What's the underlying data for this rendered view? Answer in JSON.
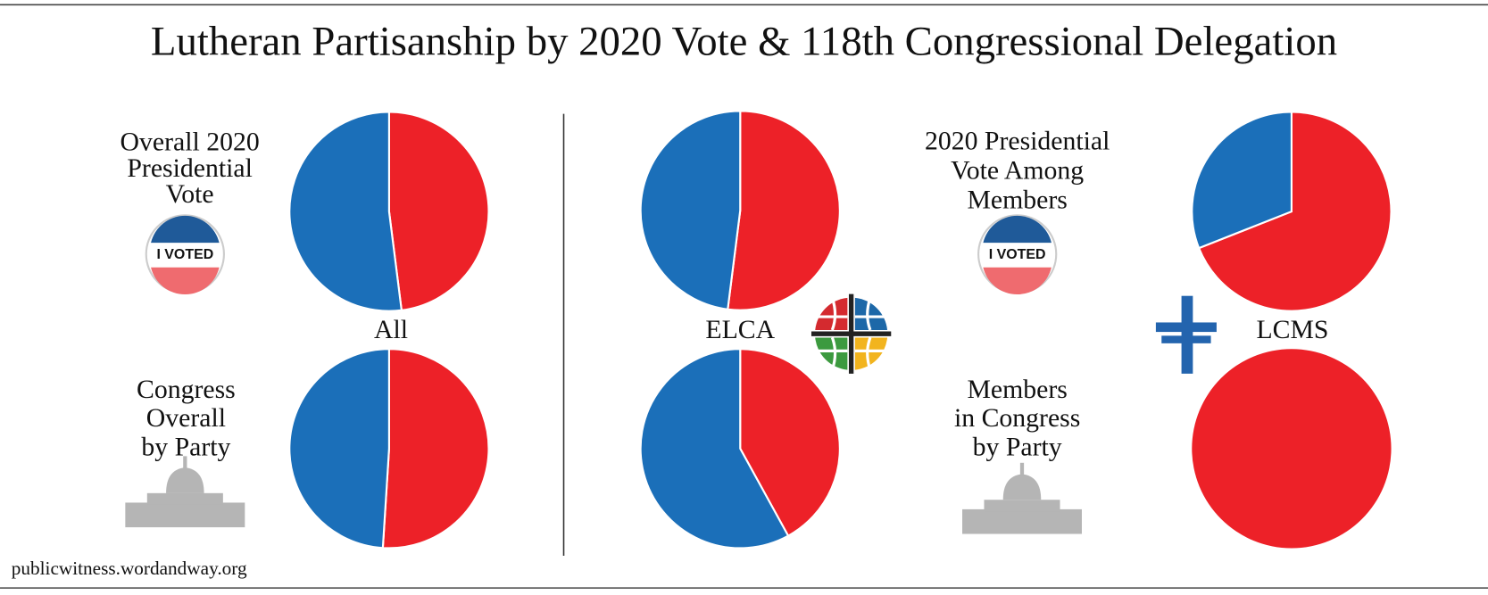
{
  "title": "Lutheran Partisanship by 2020 Vote & 118th Congressional Delegation",
  "source": "publicwitness.wordandway.org",
  "badge": "I VOTED",
  "groups": [
    "All",
    "ELCA",
    "LCMS"
  ],
  "row_labels": {
    "left_top": [
      "Overall 2020",
      "Presidential",
      "Vote"
    ],
    "left_bottom": [
      "Congress",
      "Overall",
      "by Party"
    ],
    "right_top": [
      "2020 Presidential",
      "Vote Among",
      "Members"
    ],
    "right_bottom": [
      "Members",
      "in Congress",
      "by Party"
    ]
  },
  "chart_data": [
    {
      "type": "pie",
      "values": [
        48,
        52
      ],
      "colors": [
        "#ed2128",
        "#1b6fb9"
      ]
    },
    {
      "type": "pie",
      "values": [
        51,
        49
      ],
      "colors": [
        "#ed2128",
        "#1b6fb9"
      ]
    },
    {
      "type": "pie",
      "values": [
        52,
        48
      ],
      "colors": [
        "#ed2128",
        "#1b6fb9"
      ]
    },
    {
      "type": "pie",
      "values": [
        42,
        58
      ],
      "colors": [
        "#ed2128",
        "#1b6fb9"
      ]
    },
    {
      "type": "pie",
      "values": [
        69,
        31
      ],
      "colors": [
        "#ed2128",
        "#1b6fb9"
      ]
    },
    {
      "type": "pie",
      "values": [
        100
      ],
      "colors": [
        "#ed2128"
      ]
    }
  ]
}
